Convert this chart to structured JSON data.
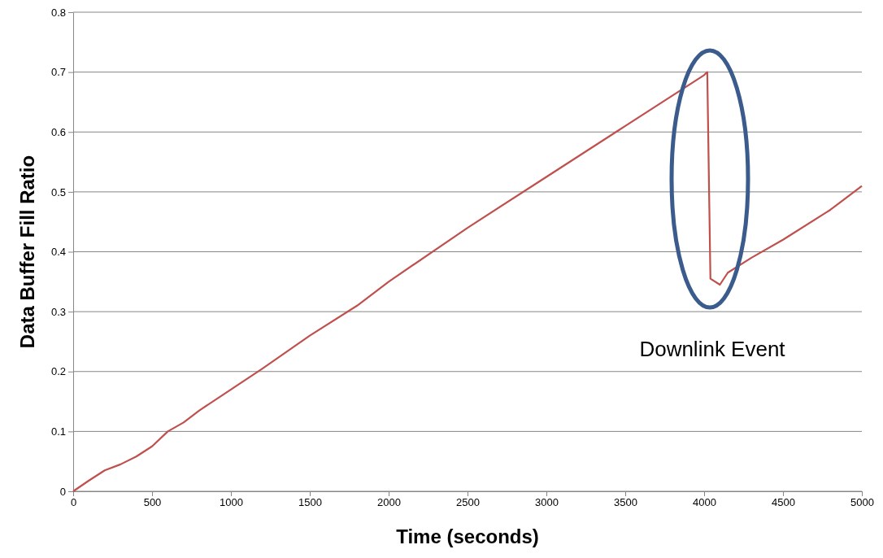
{
  "chart_data": {
    "type": "line",
    "xlabel": "Time (seconds)",
    "ylabel": "Data Buffer Fill Ratio",
    "xlim": [
      0,
      5000
    ],
    "xticks": [
      0,
      500,
      1000,
      1500,
      2000,
      2500,
      3000,
      3500,
      4000,
      4500,
      5000
    ],
    "ylim": [
      0,
      0.8
    ],
    "yticks": [
      0,
      0.1,
      0.2,
      0.3,
      0.4,
      0.5,
      0.6,
      0.7,
      0.8
    ],
    "grid": "y",
    "marker": "none",
    "line_style": "solid",
    "series": [
      {
        "color": "#c0504d",
        "x": [
          0,
          100,
          200,
          300,
          400,
          500,
          600,
          700,
          800,
          1000,
          1200,
          1500,
          1800,
          2000,
          2500,
          3000,
          3500,
          4000,
          4020,
          4040,
          4100,
          4150,
          4300,
          4500,
          4800,
          5000
        ],
        "values": [
          0,
          0.018,
          0.035,
          0.045,
          0.058,
          0.075,
          0.1,
          0.115,
          0.135,
          0.17,
          0.205,
          0.26,
          0.31,
          0.35,
          0.44,
          0.525,
          0.61,
          0.695,
          0.7,
          0.355,
          0.345,
          0.365,
          0.39,
          0.42,
          0.47,
          0.51
        ]
      }
    ],
    "annotations": [
      "Downlink Event"
    ]
  }
}
